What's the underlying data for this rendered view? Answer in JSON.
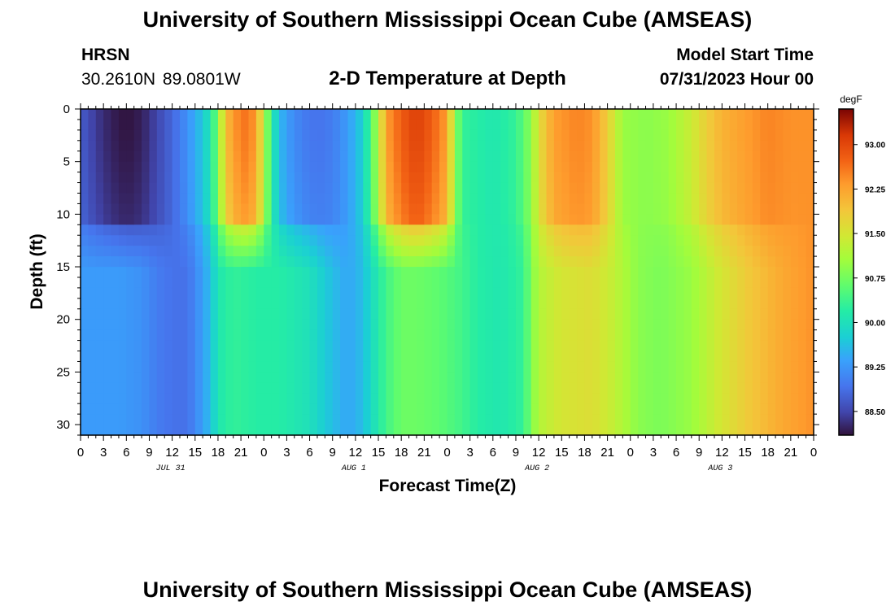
{
  "titles": {
    "top": "University of Southern Mississippi Ocean Cube (AMSEAS)",
    "bottom": "University of Southern Mississippi Ocean Cube (AMSEAS)"
  },
  "station": {
    "id": "HRSN",
    "coords": "30.2610N  89.0801W"
  },
  "model": {
    "label": "Model Start Time",
    "value": "07/31/2023 Hour 00"
  },
  "chart_data": {
    "type": "heatmap",
    "title": "2-D Temperature at Depth",
    "xlabel": "Forecast Time(Z)",
    "ylabel": "Depth (ft)",
    "x_ticks": [
      "0",
      "3",
      "6",
      "9",
      "12",
      "15",
      "18",
      "21",
      "0",
      "3",
      "6",
      "9",
      "12",
      "15",
      "18",
      "21",
      "0",
      "3",
      "6",
      "9",
      "12",
      "15",
      "18",
      "21",
      "0",
      "3",
      "6",
      "9",
      "12",
      "15",
      "18",
      "21",
      "0"
    ],
    "day_labels": [
      "JUL 31",
      "AUG 1",
      "AUG 2",
      "AUG 3"
    ],
    "y_ticks": [
      "0",
      "5",
      "10",
      "15",
      "20",
      "25",
      "30"
    ],
    "ylim": [
      0,
      31
    ],
    "xlim_hours": [
      0,
      96
    ],
    "colorbar": {
      "unit": "degF",
      "ticks": [
        "88.50",
        "89.25",
        "90.00",
        "90.75",
        "91.50",
        "92.25",
        "93.00"
      ],
      "range": [
        88.1,
        93.6
      ]
    },
    "surface_profile": [
      [
        0,
        88.7
      ],
      [
        2,
        88.4
      ],
      [
        4,
        88.2
      ],
      [
        6,
        88.1
      ],
      [
        8,
        88.2
      ],
      [
        10,
        88.5
      ],
      [
        12,
        88.8
      ],
      [
        14,
        89.2
      ],
      [
        16,
        89.7
      ],
      [
        17,
        90.1
      ],
      [
        18,
        90.8
      ],
      [
        19,
        92.0
      ],
      [
        20,
        92.3
      ],
      [
        21,
        92.6
      ],
      [
        22,
        92.6
      ],
      [
        23,
        92.3
      ],
      [
        24,
        91.3
      ],
      [
        25,
        90.2
      ],
      [
        26,
        89.6
      ],
      [
        27,
        89.3
      ],
      [
        29,
        89.0
      ],
      [
        31,
        88.9
      ],
      [
        33,
        89.0
      ],
      [
        35,
        89.3
      ],
      [
        37,
        89.8
      ],
      [
        39,
        91.2
      ],
      [
        40,
        92.3
      ],
      [
        42,
        92.8
      ],
      [
        44,
        93.1
      ],
      [
        46,
        92.8
      ],
      [
        48,
        92.3
      ],
      [
        49,
        91.0
      ],
      [
        50,
        90.3
      ],
      [
        52,
        90.2
      ],
      [
        54,
        90.1
      ],
      [
        57,
        90.3
      ],
      [
        59,
        90.9
      ],
      [
        60,
        91.6
      ],
      [
        62,
        92.3
      ],
      [
        65,
        92.5
      ],
      [
        67,
        92.4
      ],
      [
        69,
        91.8
      ],
      [
        71,
        91.0
      ],
      [
        74,
        90.9
      ],
      [
        77,
        91.0
      ],
      [
        80,
        91.4
      ],
      [
        82,
        91.8
      ],
      [
        84,
        92.1
      ],
      [
        87,
        92.3
      ],
      [
        90,
        92.5
      ],
      [
        93,
        92.4
      ],
      [
        96,
        92.4
      ]
    ],
    "deep_profile": [
      [
        0,
        89.3
      ],
      [
        5,
        89.3
      ],
      [
        8,
        89.2
      ],
      [
        10,
        89.0
      ],
      [
        12,
        88.9
      ],
      [
        14,
        88.9
      ],
      [
        15,
        89.1
      ],
      [
        17,
        89.6
      ],
      [
        18,
        90.1
      ],
      [
        20,
        90.3
      ],
      [
        23,
        90.2
      ],
      [
        26,
        90.2
      ],
      [
        30,
        90.0
      ],
      [
        33,
        89.6
      ],
      [
        35,
        89.4
      ],
      [
        37,
        89.6
      ],
      [
        38,
        89.9
      ],
      [
        40,
        90.4
      ],
      [
        42,
        90.7
      ],
      [
        44,
        90.7
      ],
      [
        47,
        90.6
      ],
      [
        50,
        90.4
      ],
      [
        52,
        90.2
      ],
      [
        55,
        90.1
      ],
      [
        58,
        90.3
      ],
      [
        59,
        90.8
      ],
      [
        60,
        91.2
      ],
      [
        63,
        91.5
      ],
      [
        67,
        91.6
      ],
      [
        70,
        91.3
      ],
      [
        73,
        90.9
      ],
      [
        76,
        90.8
      ],
      [
        80,
        91.0
      ],
      [
        84,
        91.5
      ],
      [
        88,
        91.9
      ],
      [
        92,
        92.2
      ],
      [
        96,
        92.4
      ]
    ],
    "mixed_layer_depth_ft": 11.5
  }
}
